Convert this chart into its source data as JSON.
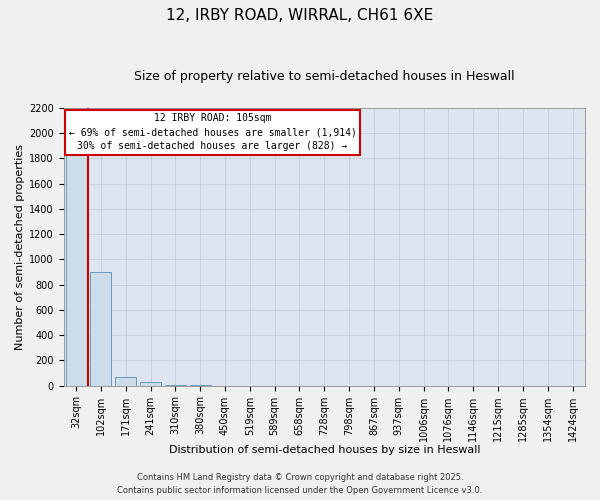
{
  "title": "12, IRBY ROAD, WIRRAL, CH61 6XE",
  "subtitle": "Size of property relative to semi-detached houses in Heswall",
  "xlabel": "Distribution of semi-detached houses by size in Heswall",
  "ylabel": "Number of semi-detached properties",
  "categories": [
    "32sqm",
    "102sqm",
    "171sqm",
    "241sqm",
    "310sqm",
    "380sqm",
    "450sqm",
    "519sqm",
    "589sqm",
    "658sqm",
    "728sqm",
    "798sqm",
    "867sqm",
    "937sqm",
    "1006sqm",
    "1076sqm",
    "1146sqm",
    "1215sqm",
    "1285sqm",
    "1354sqm",
    "1424sqm"
  ],
  "values": [
    1950,
    900,
    65,
    25,
    2,
    1,
    0,
    0,
    0,
    0,
    0,
    0,
    0,
    0,
    0,
    0,
    0,
    0,
    0,
    0,
    0
  ],
  "bar_color": "#ccdce8",
  "bar_edge_color": "#6699bb",
  "annotation_line1": "12 IRBY ROAD: 105sqm",
  "annotation_line2": "← 69% of semi-detached houses are smaller (1,914)",
  "annotation_line3": "30% of semi-detached houses are larger (828) →",
  "annotation_box_color": "#ffffff",
  "annotation_box_edge": "#cc0000",
  "vline_color": "#cc0000",
  "ylim": [
    0,
    2200
  ],
  "yticks": [
    0,
    200,
    400,
    600,
    800,
    1000,
    1200,
    1400,
    1600,
    1800,
    2000,
    2200
  ],
  "grid_color": "#c0c8d8",
  "bg_color": "#dde6f0",
  "fig_bg_color": "#f0f0f0",
  "footer_line1": "Contains HM Land Registry data © Crown copyright and database right 2025.",
  "footer_line2": "Contains public sector information licensed under the Open Government Licence v3.0.",
  "title_fontsize": 11,
  "subtitle_fontsize": 9,
  "ylabel_fontsize": 8,
  "xlabel_fontsize": 8,
  "tick_fontsize": 7,
  "footer_fontsize": 6
}
